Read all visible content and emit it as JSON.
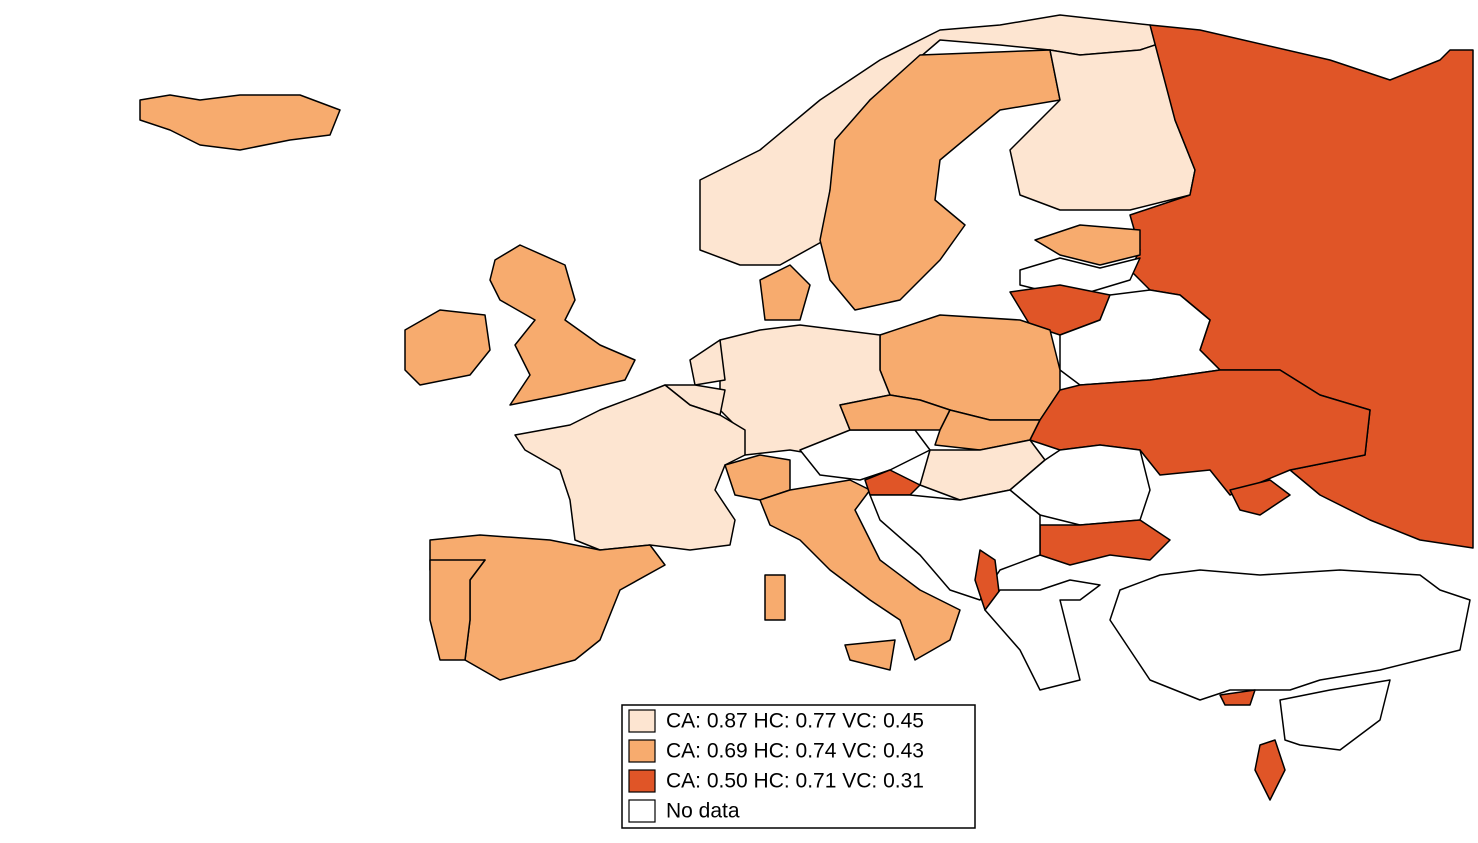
{
  "legend": {
    "items": [
      {
        "label": "CA: 0.87 HC: 0.77 VC: 0.45",
        "color": "#fde5d1"
      },
      {
        "label": "CA: 0.69 HC: 0.74 VC: 0.43",
        "color": "#f7ab6e"
      },
      {
        "label": "CA: 0.50 HC: 0.71 VC: 0.31",
        "color": "#e05527"
      },
      {
        "label": "No data",
        "color": "#ffffff"
      }
    ]
  }
}
